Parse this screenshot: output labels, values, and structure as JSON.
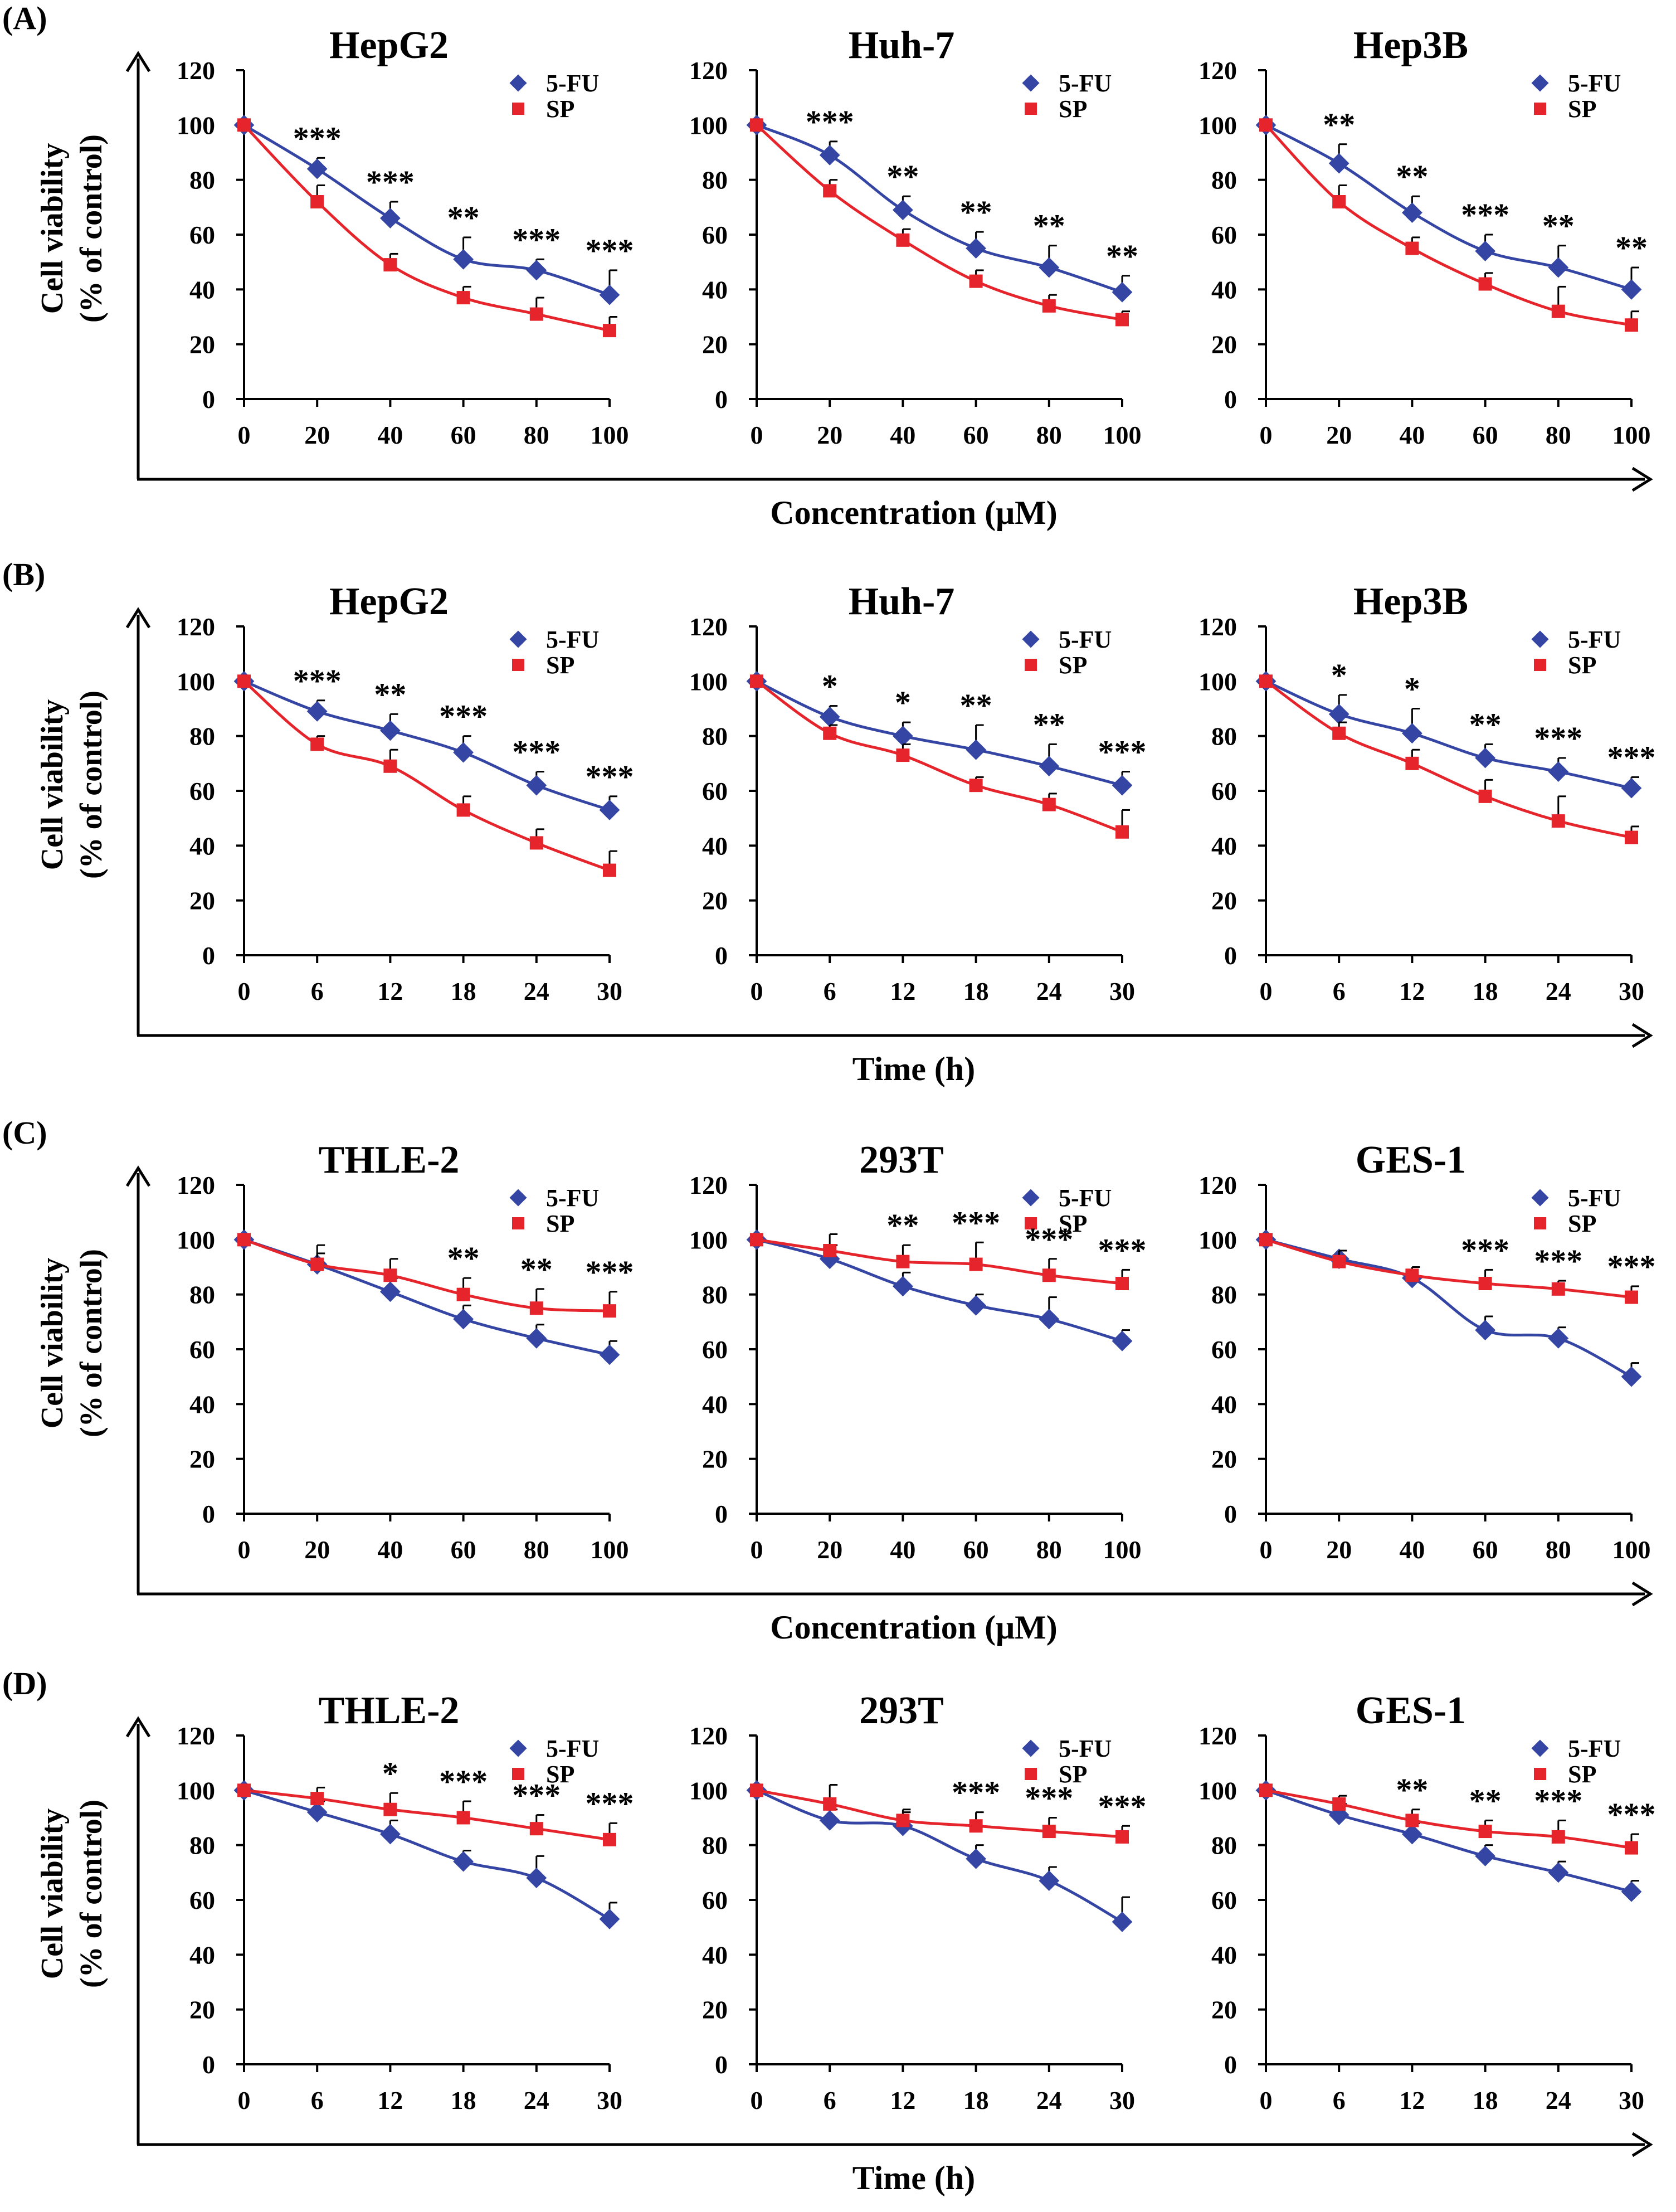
{
  "colors": {
    "fu": "#3545a4",
    "sp": "#e5242b",
    "axis": "#000000"
  },
  "legend": {
    "fu": "5-FU",
    "sp": "SP"
  },
  "chart_data": [
    {
      "id": "A",
      "label": "(A)",
      "type": "line",
      "ylabel": [
        "Cell viability",
        "(% of control)"
      ],
      "xlabel": "Concentration (μM)",
      "ylim": [
        0,
        120
      ],
      "yticks": [
        "0",
        "20",
        "40",
        "60",
        "80",
        "100",
        "120"
      ],
      "xticks": [
        "0",
        "20",
        "40",
        "60",
        "80",
        "100"
      ],
      "panels": [
        {
          "title": "HepG2",
          "series": [
            {
              "name": "5-FU",
              "values": [
                100,
                84,
                66,
                51,
                47,
                38
              ],
              "err": [
                0,
                4,
                6,
                8,
                4,
                9
              ]
            },
            {
              "name": "SP",
              "values": [
                100,
                72,
                49,
                37,
                31,
                25
              ],
              "err": [
                0,
                6,
                4,
                4,
                6,
                5
              ]
            }
          ],
          "sig": [
            "",
            "***",
            "***",
            "**",
            "***",
            "***"
          ]
        },
        {
          "title": "Huh-7",
          "series": [
            {
              "name": "5-FU",
              "values": [
                100,
                89,
                69,
                55,
                48,
                39
              ],
              "err": [
                0,
                5,
                5,
                6,
                8,
                6
              ]
            },
            {
              "name": "SP",
              "values": [
                100,
                76,
                58,
                43,
                34,
                29
              ],
              "err": [
                0,
                4,
                4,
                4,
                4,
                3
              ]
            }
          ],
          "sig": [
            "",
            "***",
            "**",
            "**",
            "**",
            "**"
          ]
        },
        {
          "title": "Hep3B",
          "series": [
            {
              "name": "5-FU",
              "values": [
                100,
                86,
                68,
                54,
                48,
                40
              ],
              "err": [
                0,
                7,
                6,
                6,
                8,
                8
              ]
            },
            {
              "name": "SP",
              "values": [
                100,
                72,
                55,
                42,
                32,
                27
              ],
              "err": [
                0,
                6,
                4,
                4,
                9,
                5
              ]
            }
          ],
          "sig": [
            "",
            "**",
            "**",
            "***",
            "**",
            "**"
          ]
        }
      ]
    },
    {
      "id": "B",
      "label": "(B)",
      "type": "line",
      "ylabel": [
        "Cell viability",
        "(% of control)"
      ],
      "xlabel": "Time (h)",
      "ylim": [
        0,
        120
      ],
      "yticks": [
        "0",
        "20",
        "40",
        "60",
        "80",
        "100",
        "120"
      ],
      "xticks": [
        "0",
        "6",
        "12",
        "18",
        "24",
        "30"
      ],
      "panels": [
        {
          "title": "HepG2",
          "series": [
            {
              "name": "5-FU",
              "values": [
                100,
                89,
                82,
                74,
                62,
                53
              ],
              "err": [
                0,
                4,
                6,
                6,
                5,
                5
              ]
            },
            {
              "name": "SP",
              "values": [
                100,
                77,
                69,
                53,
                41,
                31
              ],
              "err": [
                0,
                3,
                6,
                5,
                5,
                7
              ]
            }
          ],
          "sig": [
            "",
            "***",
            "**",
            "***",
            "***",
            "***"
          ]
        },
        {
          "title": "Huh-7",
          "series": [
            {
              "name": "5-FU",
              "values": [
                100,
                87,
                80,
                75,
                69,
                62
              ],
              "err": [
                0,
                4,
                5,
                9,
                8,
                5
              ]
            },
            {
              "name": "SP",
              "values": [
                100,
                81,
                73,
                62,
                55,
                45
              ],
              "err": [
                0,
                3,
                4,
                3,
                4,
                8
              ]
            }
          ],
          "sig": [
            "",
            "*",
            "*",
            "**",
            "**",
            "***"
          ]
        },
        {
          "title": "Hep3B",
          "series": [
            {
              "name": "5-FU",
              "values": [
                100,
                88,
                81,
                72,
                67,
                61
              ],
              "err": [
                0,
                7,
                9,
                5,
                5,
                4
              ]
            },
            {
              "name": "SP",
              "values": [
                100,
                81,
                70,
                58,
                49,
                43
              ],
              "err": [
                0,
                4,
                5,
                6,
                9,
                4
              ]
            }
          ],
          "sig": [
            "",
            "*",
            "*",
            "**",
            "***",
            "***"
          ]
        }
      ]
    },
    {
      "id": "C",
      "label": "(C)",
      "type": "line",
      "ylabel": [
        "Cell viability",
        "(% of control)"
      ],
      "xlabel": "Concentration (μM)",
      "ylim": [
        0,
        120
      ],
      "yticks": [
        "0",
        "20",
        "40",
        "60",
        "80",
        "100",
        "120"
      ],
      "xticks": [
        "0",
        "20",
        "40",
        "60",
        "80",
        "100"
      ],
      "panels": [
        {
          "title": "THLE-2",
          "series": [
            {
              "name": "5-FU",
              "values": [
                100,
                91,
                81,
                71,
                64,
                58
              ],
              "err": [
                0,
                4,
                5,
                5,
                5,
                5
              ]
            },
            {
              "name": "SP",
              "values": [
                100,
                91,
                87,
                80,
                75,
                74
              ],
              "err": [
                0,
                7,
                6,
                6,
                7,
                7
              ]
            }
          ],
          "sig": [
            "",
            "",
            "",
            "**",
            "**",
            "***"
          ]
        },
        {
          "title": "293T",
          "series": [
            {
              "name": "5-FU",
              "values": [
                100,
                93,
                83,
                76,
                71,
                63
              ],
              "err": [
                0,
                5,
                5,
                4,
                8,
                4
              ]
            },
            {
              "name": "SP",
              "values": [
                100,
                96,
                92,
                91,
                87,
                84
              ],
              "err": [
                0,
                6,
                6,
                8,
                6,
                5
              ]
            }
          ],
          "sig": [
            "",
            "",
            "**",
            "***",
            "***",
            "***"
          ]
        },
        {
          "title": "GES-1",
          "series": [
            {
              "name": "5-FU",
              "values": [
                100,
                93,
                86,
                67,
                64,
                50
              ],
              "err": [
                0,
                3,
                4,
                5,
                4,
                5
              ]
            },
            {
              "name": "SP",
              "values": [
                100,
                92,
                87,
                84,
                82,
                79
              ],
              "err": [
                0,
                4,
                3,
                5,
                3,
                4
              ]
            }
          ],
          "sig": [
            "",
            "",
            "",
            "***",
            "***",
            "***"
          ]
        }
      ]
    },
    {
      "id": "D",
      "label": "(D)",
      "type": "line",
      "ylabel": [
        "Cell viability",
        "(% of control)"
      ],
      "xlabel": "Time (h)",
      "ylim": [
        0,
        120
      ],
      "yticks": [
        "0",
        "20",
        "40",
        "60",
        "80",
        "100",
        "120"
      ],
      "xticks": [
        "0",
        "6",
        "12",
        "18",
        "24",
        "30"
      ],
      "panels": [
        {
          "title": "THLE-2",
          "series": [
            {
              "name": "5-FU",
              "values": [
                100,
                92,
                84,
                74,
                68,
                53
              ],
              "err": [
                0,
                4,
                5,
                4,
                8,
                6
              ]
            },
            {
              "name": "SP",
              "values": [
                100,
                97,
                93,
                90,
                86,
                82
              ],
              "err": [
                0,
                4,
                6,
                6,
                5,
                6
              ]
            }
          ],
          "sig": [
            "",
            "",
            "*",
            "***",
            "***",
            "***"
          ]
        },
        {
          "title": "293T",
          "series": [
            {
              "name": "5-FU",
              "values": [
                100,
                89,
                87,
                75,
                67,
                52
              ],
              "err": [
                0,
                4,
                5,
                5,
                5,
                9
              ]
            },
            {
              "name": "SP",
              "values": [
                100,
                95,
                89,
                87,
                85,
                83
              ],
              "err": [
                0,
                7,
                4,
                5,
                5,
                4
              ]
            }
          ],
          "sig": [
            "",
            "",
            "",
            "***",
            "***",
            "***"
          ]
        },
        {
          "title": "GES-1",
          "series": [
            {
              "name": "5-FU",
              "values": [
                100,
                91,
                84,
                76,
                70,
                63
              ],
              "err": [
                0,
                4,
                4,
                4,
                4,
                4
              ]
            },
            {
              "name": "SP",
              "values": [
                100,
                95,
                89,
                85,
                83,
                79
              ],
              "err": [
                0,
                3,
                4,
                4,
                6,
                5
              ]
            }
          ],
          "sig": [
            "",
            "",
            "**",
            "**",
            "***",
            "***"
          ]
        }
      ]
    }
  ]
}
